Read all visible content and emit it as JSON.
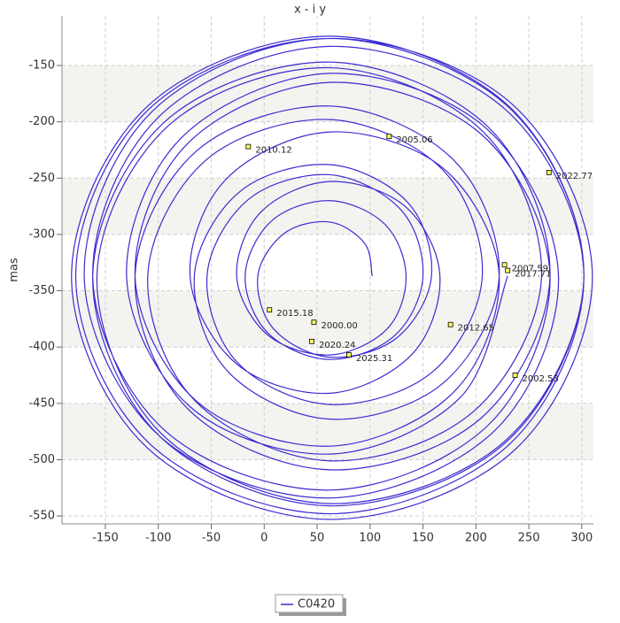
{
  "chart_data": {
    "type": "line",
    "title": "x - i y",
    "y_label": "mas",
    "xlim": [
      -191,
      311
    ],
    "ylim": [
      -557,
      -106
    ],
    "xticks": [
      -150,
      -100,
      -50,
      0,
      50,
      100,
      150,
      200,
      250,
      300
    ],
    "yticks": [
      -550,
      -500,
      -450,
      -400,
      -350,
      -300,
      -250,
      -200,
      -150
    ],
    "grid": true,
    "bands": true,
    "legend": "bottom",
    "series": [
      {
        "name": "C0420",
        "color": "#3b2bd2",
        "x": [
          102,
          95,
          62,
          19,
          -6,
          9,
          62,
          125,
          158,
          136,
          62,
          -23,
          -66,
          -34,
          62,
          169,
          222,
          179,
          62,
          -64,
          -122,
          -72,
          62,
          205,
          270,
          212,
          62,
          -94,
          -162,
          -99,
          62,
          229,
          302,
          232,
          62,
          -108,
          -178,
          -108,
          62,
          232,
          302,
          229,
          62,
          -99,
          -162,
          -94,
          62,
          212,
          270,
          205,
          62,
          -72,
          -122,
          -64,
          62,
          179,
          222,
          170,
          62,
          -36,
          -70,
          -26,
          62,
          140,
          166,
          133,
          62,
          -3,
          -26,
          3,
          62,
          116,
          134,
          114,
          62,
          7,
          -18,
          4,
          62,
          123,
          150,
          129,
          62,
          -15,
          -54,
          -25,
          62,
          159,
          206,
          169,
          62,
          -55,
          -110,
          -65,
          62,
          198,
          262,
          207,
          62,
          -90,
          -158,
          -97,
          62,
          228,
          302,
          232,
          62,
          -110,
          -182,
          -111,
          62,
          237,
          310,
          235,
          62,
          -105,
          -170,
          -99,
          62,
          218,
          278,
          210,
          62,
          -78,
          -130,
          -70,
          62,
          185,
          230
        ],
        "values": [
          -337,
          -308,
          -289,
          -299,
          -337,
          -384,
          -409,
          -392,
          -337,
          -272,
          -238,
          -262,
          -337,
          -422,
          -464,
          -432,
          -337,
          -234,
          -186,
          -226,
          -337,
          -455,
          -509,
          -463,
          -337,
          -205,
          -147,
          -200,
          -337,
          -479,
          -541,
          -484,
          -337,
          -188,
          -126,
          -188,
          -337,
          -486,
          -548,
          -486,
          -337,
          -190,
          -133,
          -195,
          -337,
          -474,
          -527,
          -469,
          -337,
          -211,
          -165,
          -219,
          -337,
          -448,
          -488,
          -440,
          -337,
          -242,
          -209,
          -251,
          -337,
          -415,
          -441,
          -406,
          -337,
          -275,
          -253,
          -280,
          -337,
          -389,
          -407,
          -384,
          -337,
          -291,
          -270,
          -288,
          -337,
          -388,
          -411,
          -390,
          -337,
          -278,
          -247,
          -269,
          -337,
          -414,
          -451,
          -422,
          -337,
          -243,
          -198,
          -234,
          -337,
          -448,
          -501,
          -457,
          -337,
          -209,
          -152,
          -203,
          -337,
          -477,
          -539,
          -483,
          -337,
          -187,
          -124,
          -186,
          -337,
          -489,
          -553,
          -491,
          -337,
          -185,
          -126,
          -190,
          -337,
          -479,
          -534,
          -474,
          -337,
          -206,
          -157,
          -214,
          -337,
          -453,
          -495,
          -445,
          -337
        ]
      }
    ],
    "annotations": [
      {
        "x": 47,
        "y": -378,
        "label": "2000.00"
      },
      {
        "x": 237,
        "y": -425,
        "label": "2002.53"
      },
      {
        "x": 118,
        "y": -213,
        "label": "2005.06"
      },
      {
        "x": 227,
        "y": -327,
        "label": "2007.59"
      },
      {
        "x": -15,
        "y": -222,
        "label": "2010.12"
      },
      {
        "x": 176,
        "y": -380,
        "label": "2012.65"
      },
      {
        "x": 5,
        "y": -367,
        "label": "2015.18"
      },
      {
        "x": 230,
        "y": -332,
        "label": "2017.71"
      },
      {
        "x": 45,
        "y": -395,
        "label": "2020.24"
      },
      {
        "x": 269,
        "y": -245,
        "label": "2022.77"
      },
      {
        "x": 80,
        "y": -407,
        "label": "2025.31"
      }
    ]
  }
}
